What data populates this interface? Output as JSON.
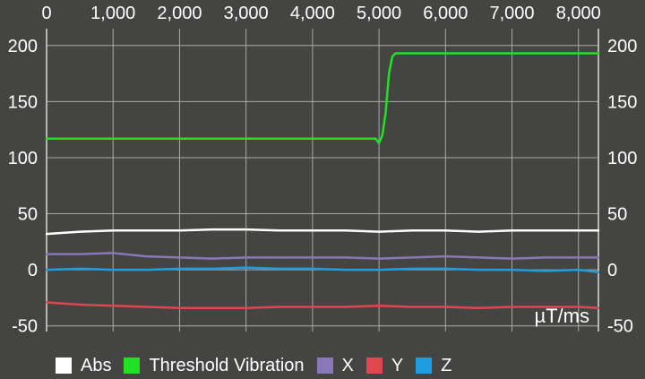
{
  "chart_data": {
    "type": "line",
    "title": "",
    "xlabel": "",
    "ylabel": "",
    "unit_label": "µT/ms",
    "xlim": [
      0,
      8300
    ],
    "ylim": [
      -55,
      215
    ],
    "x_ticks": [
      0,
      1000,
      2000,
      3000,
      4000,
      5000,
      6000,
      7000,
      8000
    ],
    "x_tick_labels": [
      "0",
      "1,000",
      "2,000",
      "3,000",
      "4,000",
      "5,000",
      "6,000",
      "7,000",
      "8,000"
    ],
    "y_ticks": [
      -50,
      0,
      50,
      100,
      150,
      200
    ],
    "y_tick_labels": [
      "-50",
      "0",
      "50",
      "100",
      "150",
      "200"
    ],
    "grid": true,
    "legend_position": "bottom-left",
    "series": [
      {
        "name": "Abs",
        "color": "#ffffff",
        "x": [
          0,
          500,
          1000,
          1500,
          2000,
          2500,
          3000,
          3500,
          4000,
          4500,
          5000,
          5500,
          6000,
          6500,
          7000,
          7500,
          8000,
          8300
        ],
        "y": [
          32,
          34,
          35,
          35,
          35,
          36,
          36,
          35,
          35,
          35,
          34,
          35,
          35,
          34,
          35,
          35,
          35,
          35
        ]
      },
      {
        "name": "Threshold Vibration",
        "color": "#22e022",
        "x": [
          0,
          1000,
          2000,
          3000,
          4000,
          4950,
          5000,
          5050,
          5100,
          5150,
          5200,
          5250,
          6000,
          7000,
          8000,
          8300
        ],
        "y": [
          117,
          117,
          117,
          117,
          117,
          117,
          113,
          120,
          140,
          175,
          190,
          193,
          193,
          193,
          193,
          193
        ]
      },
      {
        "name": "X",
        "color": "#8a77b8",
        "x": [
          0,
          500,
          1000,
          1500,
          2000,
          2500,
          3000,
          3500,
          4000,
          4500,
          5000,
          5500,
          6000,
          6500,
          7000,
          7500,
          8000,
          8300
        ],
        "y": [
          14,
          14,
          15,
          12,
          11,
          10,
          11,
          11,
          11,
          11,
          10,
          11,
          12,
          11,
          10,
          11,
          11,
          11
        ]
      },
      {
        "name": "Y",
        "color": "#e0464f",
        "x": [
          0,
          500,
          1000,
          1500,
          2000,
          2500,
          3000,
          3500,
          4000,
          4500,
          5000,
          5500,
          6000,
          6500,
          7000,
          7500,
          8000,
          8300
        ],
        "y": [
          -29,
          -31,
          -32,
          -33,
          -34,
          -34,
          -34,
          -33,
          -33,
          -33,
          -32,
          -33,
          -33,
          -34,
          -33,
          -33,
          -33,
          -34
        ]
      },
      {
        "name": "Z",
        "color": "#1e9de0",
        "x": [
          0,
          500,
          1000,
          1500,
          2000,
          2500,
          3000,
          3500,
          4000,
          4500,
          5000,
          5500,
          6000,
          6500,
          7000,
          7500,
          8000,
          8300
        ],
        "y": [
          0,
          1,
          0,
          0,
          1,
          1,
          2,
          1,
          1,
          0,
          0,
          1,
          1,
          0,
          0,
          -1,
          0,
          -2
        ]
      }
    ]
  }
}
